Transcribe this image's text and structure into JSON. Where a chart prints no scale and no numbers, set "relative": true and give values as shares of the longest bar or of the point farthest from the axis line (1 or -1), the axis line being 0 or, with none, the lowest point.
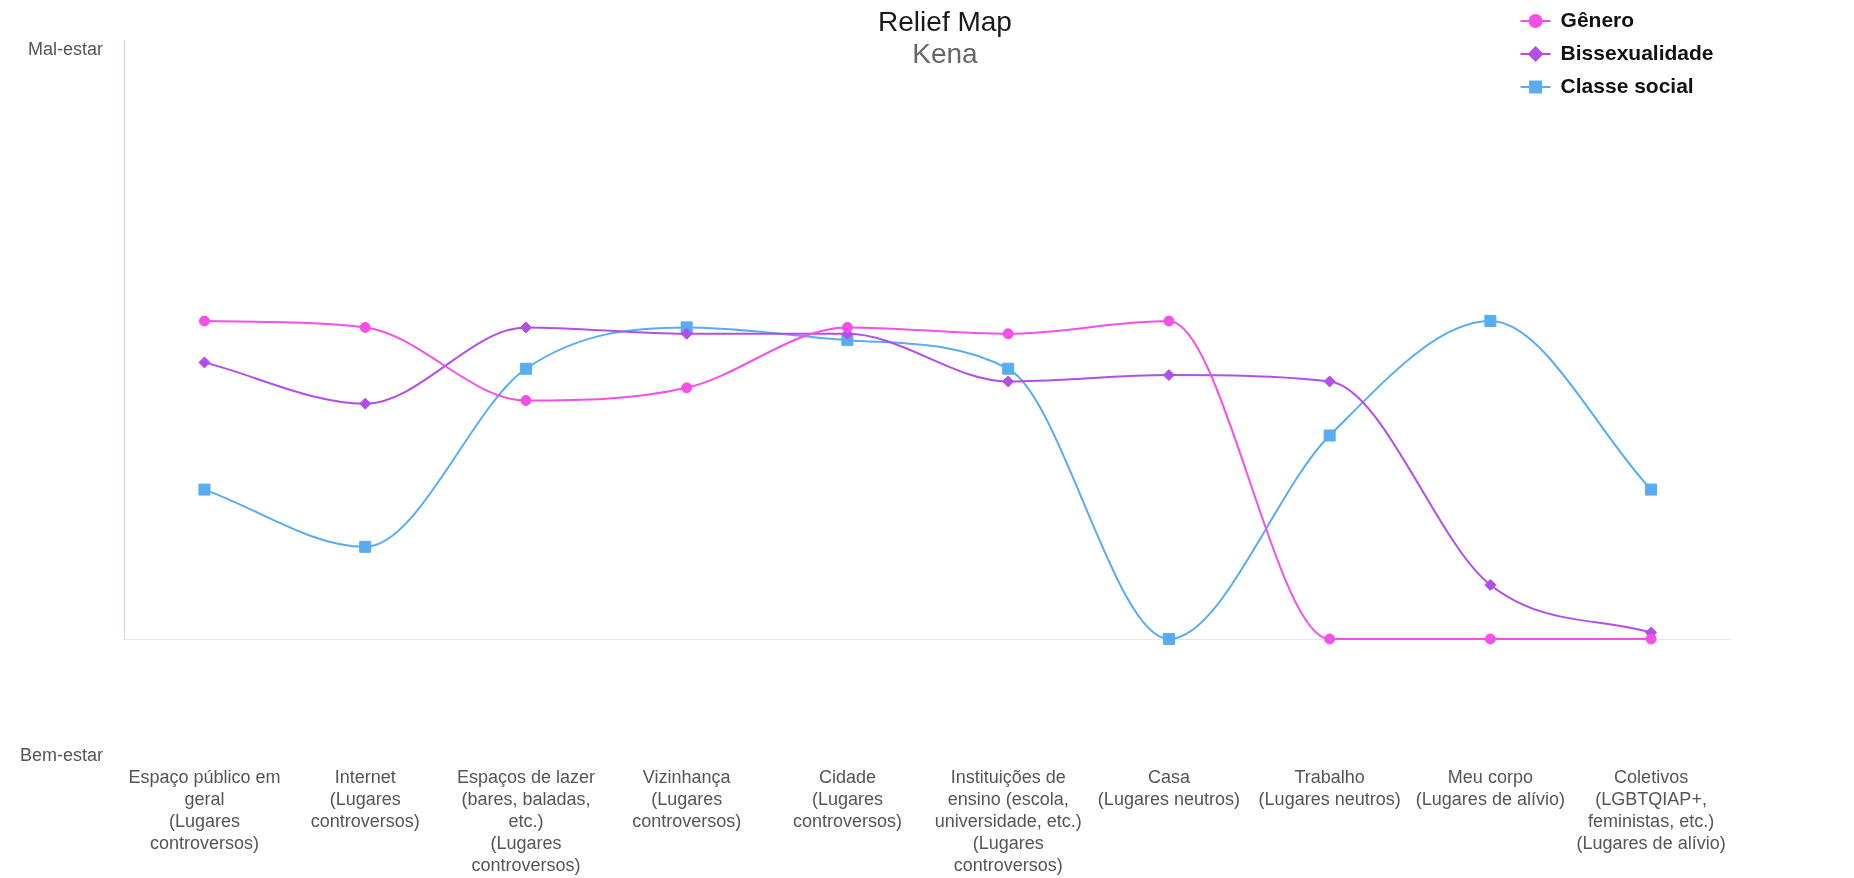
{
  "chart_data": {
    "type": "line",
    "title": "Relief Map",
    "subtitle": "Kena",
    "relative": true,
    "legend": "top right",
    "categories": [
      "Espaço público em geral (Lugares controversos)",
      "Internet (Lugares controversos)",
      "Espaços de lazer (bares, baladas, etc.) (Lugares controversos)",
      "Vizinhança (Lugares controversos)",
      "Cidade (Lugares controversos)",
      "Instituições de ensino (escola, universidade, etc.) (Lugares controversos)",
      "Casa (Lugares neutros)",
      "Trabalho (Lugares neutros)",
      "Meu corpo (Lugares de alívio)",
      "Coletivos (LGBTQIAP+, feministas, etc.) (Lugares de alívio)"
    ],
    "series": [
      {
        "name": "Gênero",
        "color": "#f550e6",
        "marker": "circle",
        "values": [
          1,
          0.98,
          0.75,
          0.79,
          0.98,
          0.96,
          1,
          0,
          0,
          0
        ]
      },
      {
        "name": "Bissexualidade",
        "color": "#b44ee8",
        "marker": "diamond",
        "values": [
          0.87,
          0.74,
          0.98,
          0.96,
          0.96,
          0.81,
          0.83,
          0.81,
          0.17,
          0.02
        ]
      },
      {
        "name": "Classe social",
        "color": "#5aacf1",
        "marker": "square",
        "values": [
          0.47,
          0.29,
          0.85,
          0.98,
          0.94,
          0.85,
          0,
          0.64,
          1,
          0.47
        ]
      }
    ],
    "annotations": [
      "Mal-estar",
      "Bem-estar"
    ]
  }
}
